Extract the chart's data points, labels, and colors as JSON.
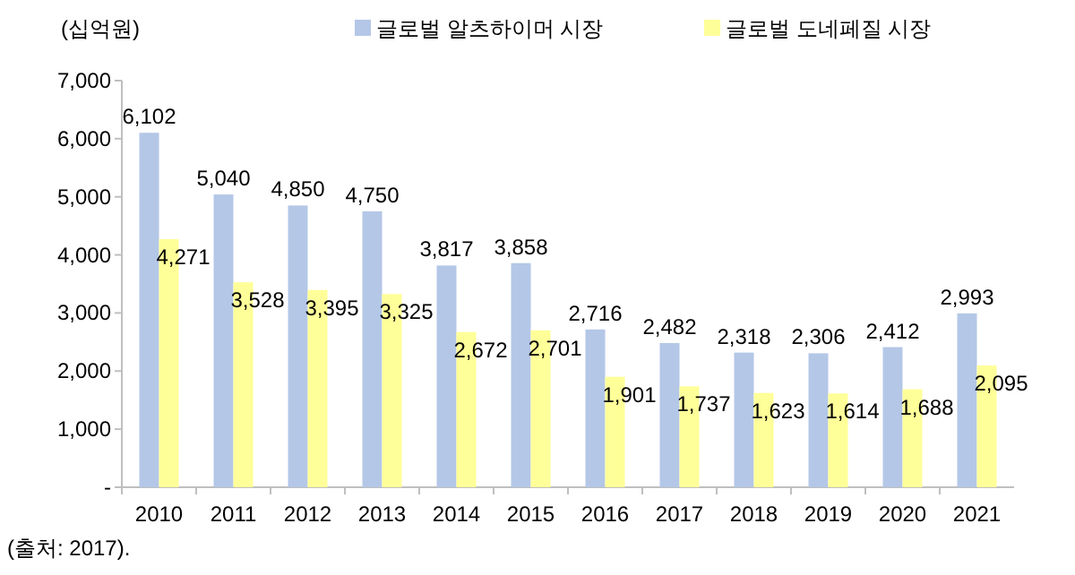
{
  "chart_data": {
    "type": "bar",
    "categories": [
      "2010",
      "2011",
      "2012",
      "2013",
      "2014",
      "2015",
      "2016",
      "2017",
      "2018",
      "2019",
      "2020",
      "2021"
    ],
    "series": [
      {
        "name": "글로벌 알츠하이머 시장",
        "color": "#b4c7e7",
        "values": [
          6102,
          5040,
          4850,
          4750,
          3817,
          3858,
          2716,
          2482,
          2318,
          2306,
          2412,
          2993
        ],
        "value_labels": [
          "6,102",
          "5,040",
          "4,850",
          "4,750",
          "3,817",
          "3,858",
          "2,716",
          "2,482",
          "2,318",
          "2,306",
          "2,412",
          "2,993"
        ]
      },
      {
        "name": "글로벌 도네페질 시장",
        "color": "#ffff99",
        "values": [
          4271,
          3528,
          3395,
          3325,
          2672,
          2701,
          1901,
          1737,
          1623,
          1614,
          1688,
          2095
        ],
        "value_labels": [
          "4,271",
          "3,528",
          "3,395",
          "3,325",
          "2,672",
          "2,701",
          "1,901",
          "1,737",
          "1,623",
          "1,614",
          "1,688",
          "2,095"
        ]
      }
    ],
    "ylabel": "(십억원)",
    "ylim": [
      0,
      7000
    ],
    "yticks": [
      {
        "value": 0,
        "label": "-"
      },
      {
        "value": 1000,
        "label": "1,000"
      },
      {
        "value": 2000,
        "label": "2,000"
      },
      {
        "value": 3000,
        "label": "3,000"
      },
      {
        "value": 4000,
        "label": "4,000"
      },
      {
        "value": 5000,
        "label": "5,000"
      },
      {
        "value": 6000,
        "label": "6,000"
      },
      {
        "value": 7000,
        "label": "7,000"
      }
    ],
    "legend": "top",
    "grid": false,
    "annotations": [
      "(출처: 2017)."
    ]
  }
}
